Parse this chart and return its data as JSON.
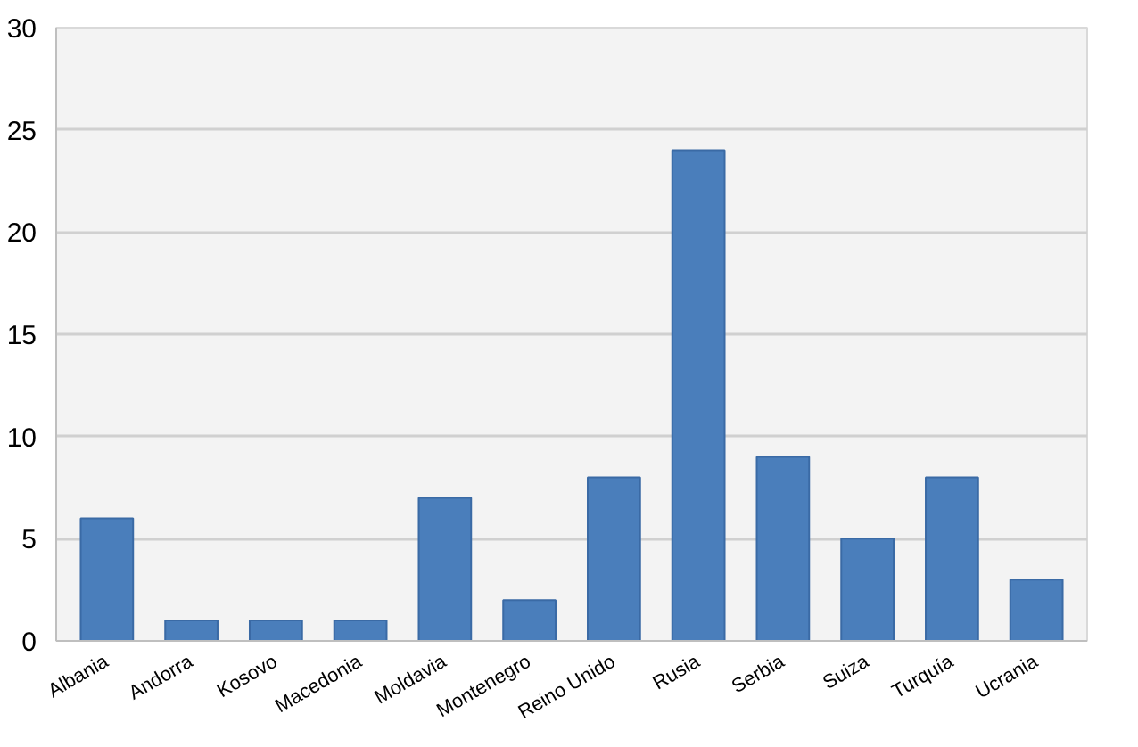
{
  "chart_data": {
    "type": "bar",
    "categories": [
      "Albania",
      "Andorra",
      "Kosovo",
      "Macedonia",
      "Moldavia",
      "Montenegro",
      "Reino Unido",
      "Rusia",
      "Serbia",
      "Suiza",
      "Turquía",
      "Ucrania"
    ],
    "values": [
      6,
      1,
      1,
      1,
      7,
      2,
      8,
      24,
      9,
      5,
      8,
      3
    ],
    "color": "#4a7ebb",
    "ylim": [
      0,
      30
    ],
    "yticks": [
      0,
      5,
      10,
      15,
      20,
      25,
      30
    ],
    "grid": "y"
  }
}
